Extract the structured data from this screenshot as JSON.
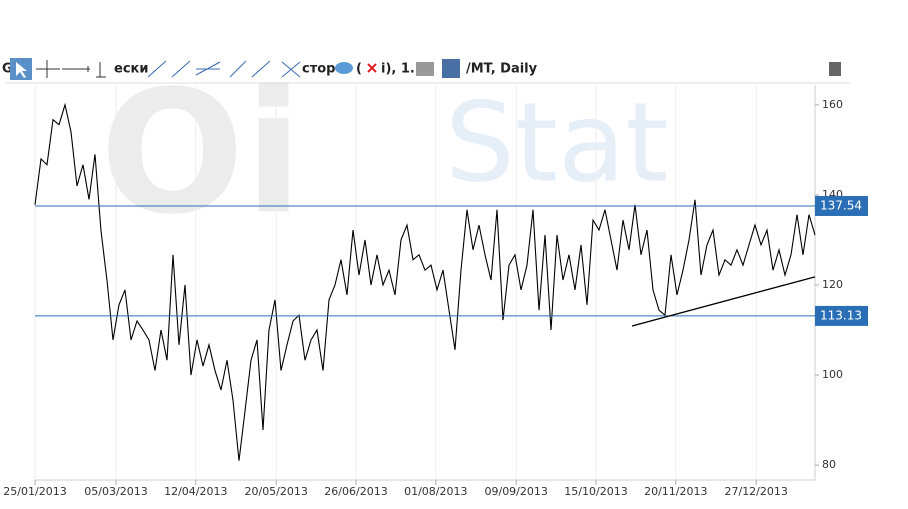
{
  "toolbar": {
    "fragments": [
      "G",
      "ески",
      "стор",
      "(",
      "i), 1.",
      "/MT, Daily"
    ]
  },
  "watermark": [
    "Oi",
    "Stat"
  ],
  "chart_data": {
    "type": "line",
    "color": "#000000",
    "values": [
      137.8,
      148,
      146.7,
      156.7,
      155.6,
      160,
      154,
      142,
      146.7,
      139,
      149,
      132,
      121,
      107.8,
      115.6,
      118.9,
      107.8,
      112,
      110,
      107.8,
      101,
      110,
      103.3,
      126.7,
      106.7,
      120,
      100,
      107.8,
      102,
      106.7,
      101,
      96.7,
      103.3,
      94.4,
      81,
      92,
      103.3,
      107.8,
      87.8,
      110,
      116.7,
      101,
      106.7,
      112,
      113.3,
      103.3,
      107.8,
      110,
      101,
      116.7,
      120,
      125.6,
      117.8,
      132.2,
      122.2,
      130,
      120,
      126.7,
      120,
      123.3,
      117.8,
      130,
      133.3,
      125.6,
      126.7,
      123.3,
      124.4,
      118.9,
      123.3,
      114.4,
      105.6,
      123.3,
      136.7,
      127.8,
      133.3,
      126.7,
      121.1,
      136.7,
      112.2,
      124.4,
      126.7,
      118.9,
      124.4,
      136.7,
      114.4,
      131.1,
      110,
      131.1,
      121.1,
      126.7,
      118.9,
      128.9,
      115.6,
      134.4,
      132.2,
      136.7,
      130,
      123.3,
      134.4,
      127.8,
      137.8,
      126.7,
      132.2,
      118.9,
      114.4,
      113.3,
      126.7,
      117.8,
      123.3,
      130,
      138.9,
      122.2,
      128.9,
      132.2,
      122.2,
      125.6,
      124.4,
      127.8,
      124.4,
      128.9,
      133.3,
      128.9,
      132.2,
      123.3,
      127.8,
      122.2,
      126.7,
      135.6,
      126.7,
      135.6,
      131.1
    ],
    "xlim": [
      0,
      130
    ],
    "ylim": [
      76.7,
      164.4
    ],
    "yticks": [
      80,
      100,
      120,
      140,
      160
    ],
    "xticks": [
      {
        "value": 0,
        "label": "25/01/2013"
      },
      {
        "value": 13.5,
        "label": "05/03/2013"
      },
      {
        "value": 26.8,
        "label": "12/04/2013"
      },
      {
        "value": 40.2,
        "label": "20/05/2013"
      },
      {
        "value": 53.5,
        "label": "26/06/2013"
      },
      {
        "value": 66.8,
        "label": "01/08/2013"
      },
      {
        "value": 80.2,
        "label": "09/09/2013"
      },
      {
        "value": 93.5,
        "label": "15/10/2013"
      },
      {
        "value": 106.8,
        "label": "20/11/2013"
      },
      {
        "value": 120.2,
        "label": "27/12/2013"
      }
    ],
    "levels": [
      137.54,
      113.13
    ],
    "level_color": "#2a6fb5",
    "trend_line": {
      "x": [
        99.5,
        130
      ],
      "values": [
        110.9,
        121.8
      ]
    }
  }
}
